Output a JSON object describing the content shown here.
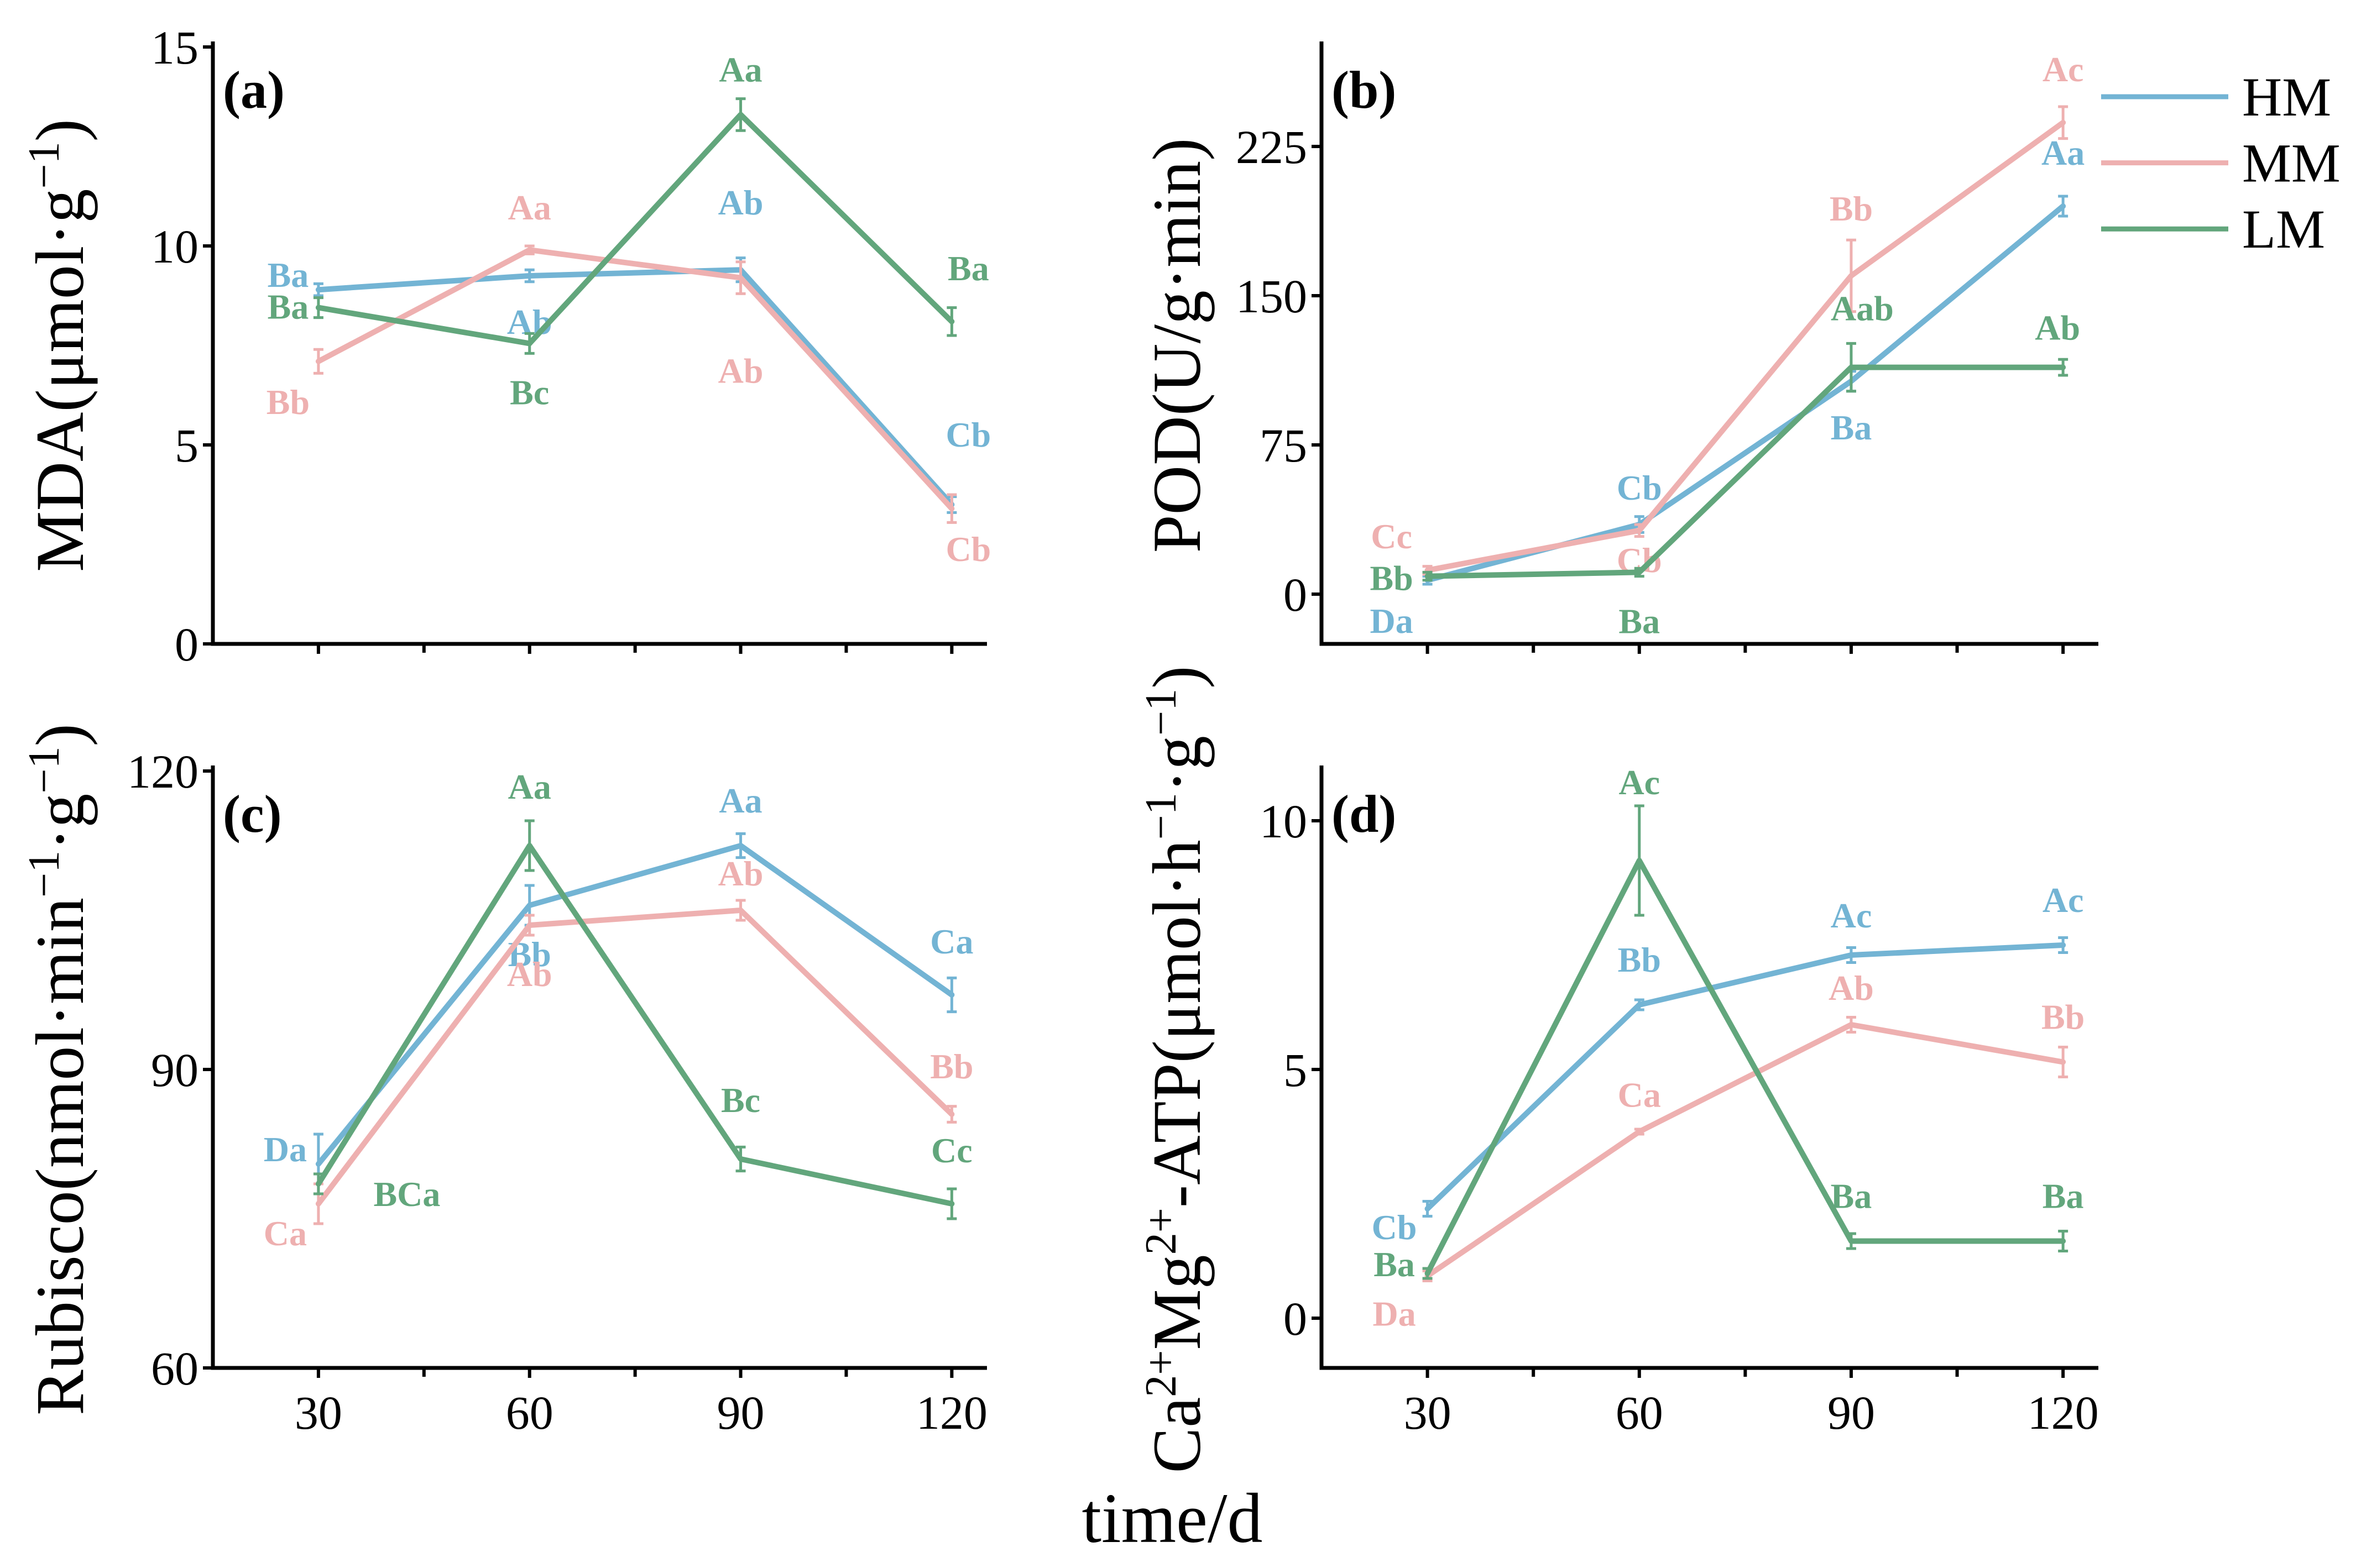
{
  "x_title": "time/d",
  "colors": {
    "HM": "#73b4d4",
    "MM": "#eeb0b0",
    "LM": "#62a67c"
  },
  "legend": {
    "placement": "top-right",
    "entries": [
      "HM",
      "MM",
      "LM"
    ]
  },
  "chart_data": [
    {
      "id": "a",
      "panel_label": "(a)",
      "type": "line",
      "ylabel_parts": [
        "MDA(μmol·g",
        "−1",
        ")"
      ],
      "x": [
        30,
        60,
        90,
        120
      ],
      "xlim": [
        15,
        125
      ],
      "ylim": [
        0,
        15
      ],
      "yticks": [
        0,
        5,
        10,
        15
      ],
      "series": [
        {
          "name": "HM",
          "values": [
            8.9,
            9.25,
            9.4,
            3.5
          ],
          "errors": [
            0.15,
            0.15,
            0.3,
            0.2
          ],
          "labels": [
            "Ba",
            "Ab",
            "Ab",
            "Cb"
          ]
        },
        {
          "name": "MM",
          "values": [
            7.1,
            9.9,
            9.2,
            3.4
          ],
          "errors": [
            0.3,
            0.1,
            0.4,
            0.35
          ],
          "labels": [
            "Bb",
            "Aa",
            "Ab",
            "Cb"
          ]
        },
        {
          "name": "LM",
          "values": [
            8.45,
            7.55,
            13.3,
            8.1
          ],
          "errors": [
            0.25,
            0.25,
            0.4,
            0.35
          ],
          "labels": [
            "Ba",
            "Bc",
            "Aa",
            "Ba"
          ]
        }
      ]
    },
    {
      "id": "b",
      "panel_label": "(b)",
      "type": "line",
      "ylabel_parts": [
        "POD(U/g·min)"
      ],
      "x": [
        30,
        60,
        90,
        120
      ],
      "xlim": [
        15,
        125
      ],
      "ylim": [
        -25,
        275
      ],
      "yticks": [
        0,
        75,
        150,
        225
      ],
      "series": [
        {
          "name": "HM",
          "values": [
            7,
            35,
            107,
            195
          ],
          "errors": [
            2,
            4,
            5,
            5
          ],
          "labels": [
            "Da",
            "Cb",
            "Ba",
            "Aa"
          ]
        },
        {
          "name": "MM",
          "values": [
            12,
            32,
            160,
            237
          ],
          "errors": [
            2,
            3,
            18,
            8
          ],
          "labels": [
            "Cc",
            "Cb",
            "Bb",
            "Ac"
          ]
        },
        {
          "name": "LM",
          "values": [
            9,
            11,
            114,
            114
          ],
          "errors": [
            2,
            2,
            12,
            4
          ],
          "labels": [
            "Bb",
            "Ba",
            "Aab",
            "Ab"
          ]
        }
      ]
    },
    {
      "id": "c",
      "panel_label": "(c)",
      "type": "line",
      "ylabel_parts": [
        "Rubisco(nmol·min",
        "−1",
        "·g",
        "−1",
        ")"
      ],
      "x": [
        30,
        60,
        90,
        120
      ],
      "xlim": [
        15,
        125
      ],
      "ylim": [
        60,
        120
      ],
      "yticks": [
        60,
        90,
        120
      ],
      "series": [
        {
          "name": "HM",
          "values": [
            80.5,
            106.5,
            112.5,
            97.5
          ],
          "errors": [
            3,
            2,
            1.2,
            1.7
          ],
          "labels": [
            "Da",
            "Bb",
            "Aa",
            "Ca"
          ]
        },
        {
          "name": "MM",
          "values": [
            76.5,
            104.5,
            106,
            85.5
          ],
          "errors": [
            2,
            1,
            1,
            0.8
          ],
          "labels": [
            "Ca",
            "Ab",
            "Ab",
            "Bb"
          ]
        },
        {
          "name": "LM",
          "values": [
            78.5,
            112.5,
            81,
            76.5
          ],
          "errors": [
            1,
            2.5,
            1.2,
            1.5
          ],
          "labels": [
            "BCa",
            "Aa",
            "Bc",
            "Cc"
          ]
        }
      ]
    },
    {
      "id": "d",
      "panel_label": "(d)",
      "type": "line",
      "ylabel_parts": [
        "Ca",
        "2+",
        "Mg",
        "2+",
        "-ATP(μmol·h",
        "−1",
        "·g",
        "−1",
        ")"
      ],
      "x": [
        30,
        60,
        90,
        120
      ],
      "xlim": [
        15,
        125
      ],
      "ylim": [
        -1,
        11
      ],
      "yticks": [
        0,
        5,
        10
      ],
      "series": [
        {
          "name": "HM",
          "values": [
            2.2,
            6.3,
            7.3,
            7.5
          ],
          "errors": [
            0.15,
            0.1,
            0.15,
            0.15
          ],
          "labels": [
            "Cb",
            "Bb",
            "Ac",
            "Ac"
          ]
        },
        {
          "name": "MM",
          "values": [
            0.85,
            3.75,
            5.9,
            5.15
          ],
          "errors": [
            0.1,
            0.05,
            0.15,
            0.3
          ],
          "labels": [
            "Da",
            "Ca",
            "Ab",
            "Bb"
          ]
        },
        {
          "name": "LM",
          "values": [
            0.9,
            9.2,
            1.55,
            1.55
          ],
          "errors": [
            0.1,
            1.1,
            0.15,
            0.2
          ],
          "labels": [
            "Ba",
            "Ac",
            "Ba",
            "Ba"
          ]
        }
      ]
    }
  ]
}
